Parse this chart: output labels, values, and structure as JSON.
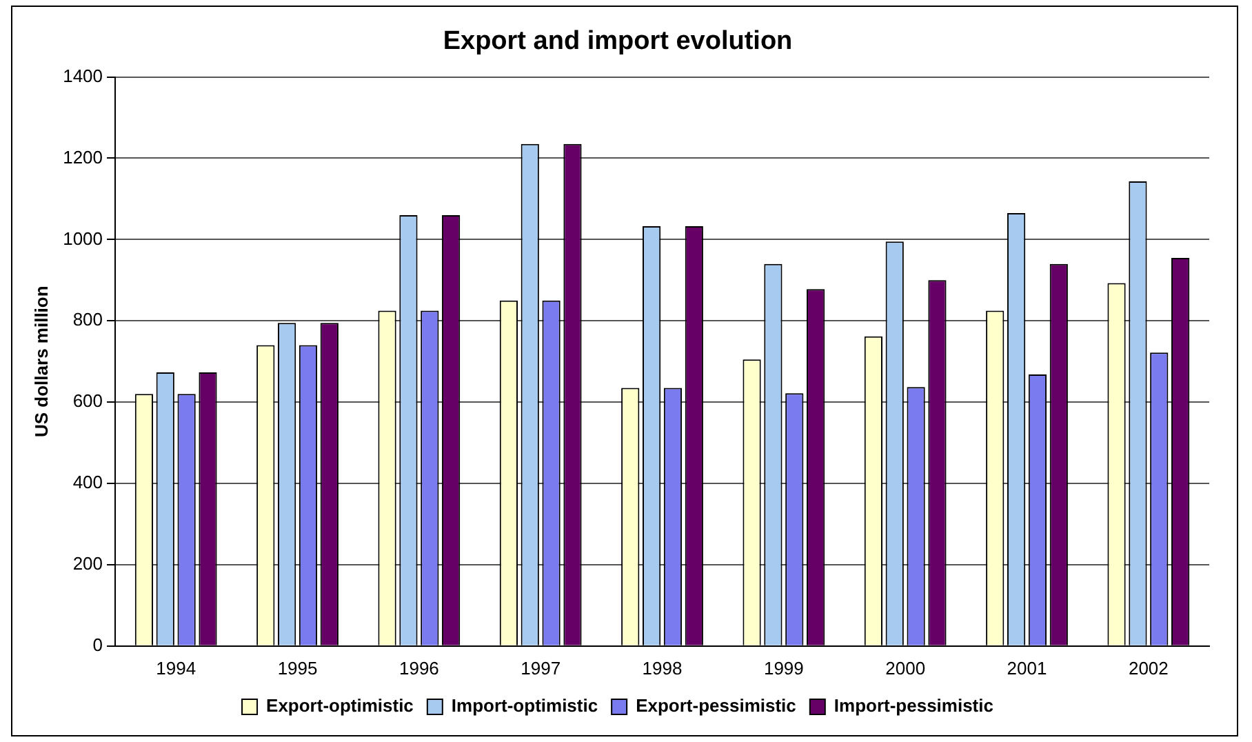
{
  "chart_data": {
    "type": "bar",
    "title": "Export and import evolution",
    "ylabel": "US dollars million",
    "categories": [
      "1994",
      "1995",
      "1996",
      "1997",
      "1998",
      "1999",
      "2000",
      "2001",
      "2002"
    ],
    "series": [
      {
        "name": "Export-optimistic",
        "color": "#ffffcc",
        "values": [
          620,
          740,
          825,
          850,
          635,
          705,
          762,
          825,
          893
        ]
      },
      {
        "name": "Import-optimistic",
        "color": "#a6caf0",
        "values": [
          673,
          795,
          1060,
          1235,
          1033,
          940,
          995,
          1065,
          1143
        ]
      },
      {
        "name": "Export-pessimistic",
        "color": "#7b7bf0",
        "values": [
          620,
          740,
          825,
          850,
          635,
          622,
          637,
          668,
          722
        ]
      },
      {
        "name": "Import-pessimistic",
        "color": "#660066",
        "values": [
          673,
          795,
          1060,
          1235,
          1033,
          878,
          900,
          940,
          955
        ]
      }
    ],
    "ylim": [
      0,
      1400
    ],
    "yticks": [
      0,
      200,
      400,
      600,
      800,
      1000,
      1200,
      1400
    ],
    "grid": "y",
    "legend": "bottom"
  }
}
